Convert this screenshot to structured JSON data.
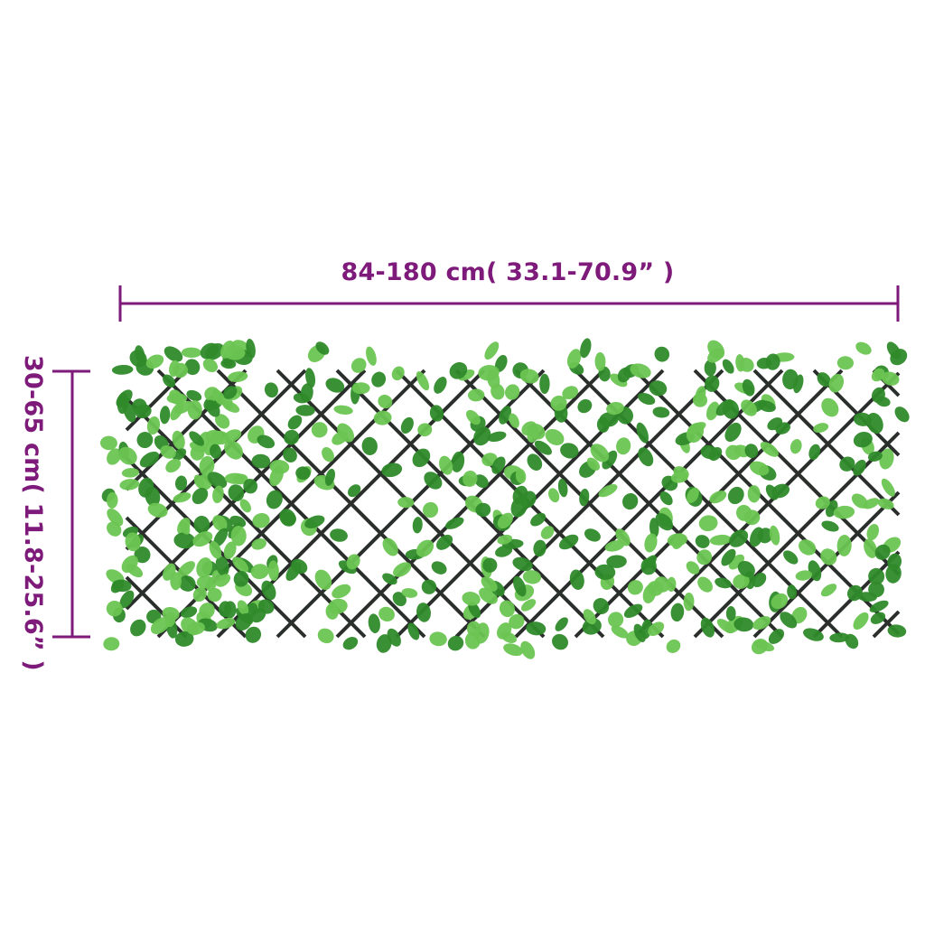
{
  "dimensions": {
    "width_label": "84-180 cm( 33.1-70.9” )",
    "height_label": "30-65 cm( 11.8-25.6” )"
  },
  "colors": {
    "dimension": "#7d1a7a",
    "lattice": "#2b2f2c",
    "leaf_dark": "#2f8a2a",
    "leaf_light": "#6cc552"
  },
  "product": {
    "type": "expandable willow trellis with artificial leaves"
  }
}
